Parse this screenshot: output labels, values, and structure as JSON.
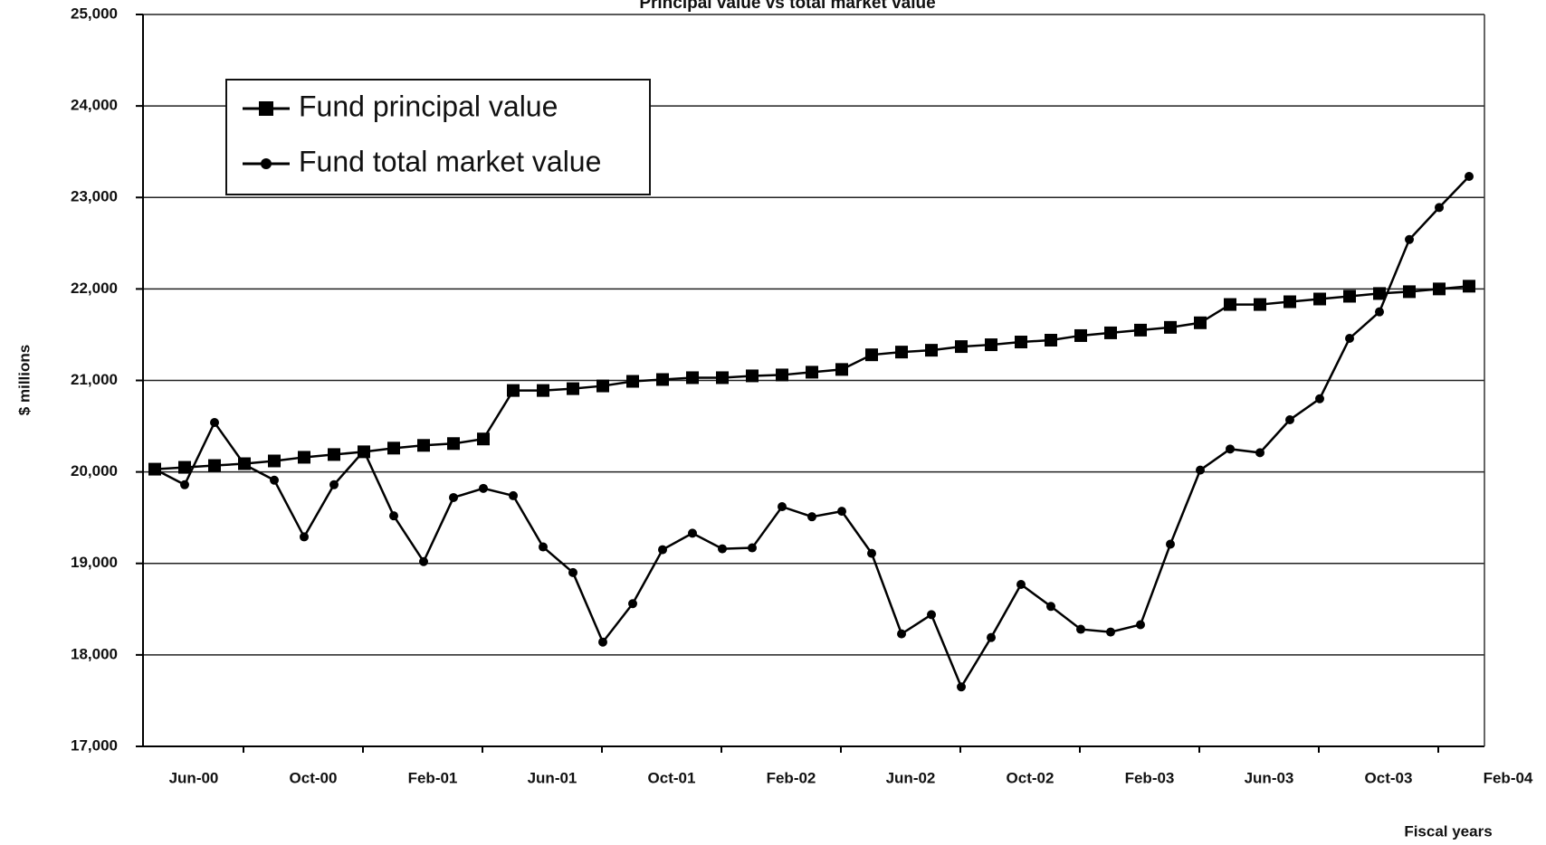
{
  "chart_data": {
    "type": "line",
    "title": "Principal value vs total market value",
    "ylabel": "$ millions",
    "xlabel": "Fiscal years",
    "categories": [
      null,
      "Jun-00",
      null,
      null,
      null,
      "Oct-00",
      null,
      null,
      null,
      "Feb-01",
      null,
      null,
      null,
      "Jun-01",
      null,
      null,
      null,
      "Oct-01",
      null,
      null,
      null,
      "Feb-02",
      null,
      null,
      null,
      "Jun-02",
      null,
      null,
      null,
      "Oct-02",
      null,
      null,
      null,
      "Feb-03",
      null,
      null,
      null,
      "Jun-03",
      null,
      null,
      null,
      "Oct-03",
      null,
      null,
      null,
      "Feb-04"
    ],
    "series": [
      {
        "name": "Fund principal value",
        "color": "#000000",
        "marker": "square",
        "values": [
          20030,
          20050,
          20070,
          20090,
          20120,
          20160,
          20190,
          20220,
          20260,
          20290,
          20310,
          20360,
          20890,
          20890,
          20910,
          20940,
          20990,
          21010,
          21030,
          21030,
          21050,
          21060,
          21090,
          21120,
          21280,
          21310,
          21330,
          21370,
          21390,
          21420,
          21440,
          21490,
          21520,
          21550,
          21580,
          21630,
          21830,
          21830,
          21860,
          21890,
          21920,
          21950,
          21970,
          22000,
          22030,
          null
        ]
      },
      {
        "name": "Fund total market value",
        "color": "#000000",
        "marker": "circle",
        "values": [
          20030,
          19860,
          20540,
          20080,
          19910,
          19290,
          19860,
          20230,
          19520,
          19020,
          19720,
          19820,
          19740,
          19180,
          18900,
          18140,
          18560,
          19150,
          19330,
          19160,
          19170,
          19620,
          19510,
          19570,
          19110,
          18230,
          18440,
          17650,
          18190,
          18770,
          18530,
          18280,
          18250,
          18330,
          19210,
          20020,
          20250,
          20210,
          20570,
          20800,
          21460,
          21750,
          22540,
          22890,
          23230,
          null
        ]
      }
    ],
    "ylim": [
      17000,
      25000
    ],
    "yticks": [
      {
        "value": 17000,
        "label": "17,000"
      },
      {
        "value": 18000,
        "label": "18,000"
      },
      {
        "value": 19000,
        "label": "19,000"
      },
      {
        "value": 20000,
        "label": "20,000"
      },
      {
        "value": 21000,
        "label": "21,000"
      },
      {
        "value": 22000,
        "label": "22,000"
      },
      {
        "value": 23000,
        "label": "23,000"
      },
      {
        "value": 24000,
        "label": "24,000"
      },
      {
        "value": 25000,
        "label": "25,000"
      }
    ],
    "grid": true,
    "legend": "upper left"
  }
}
